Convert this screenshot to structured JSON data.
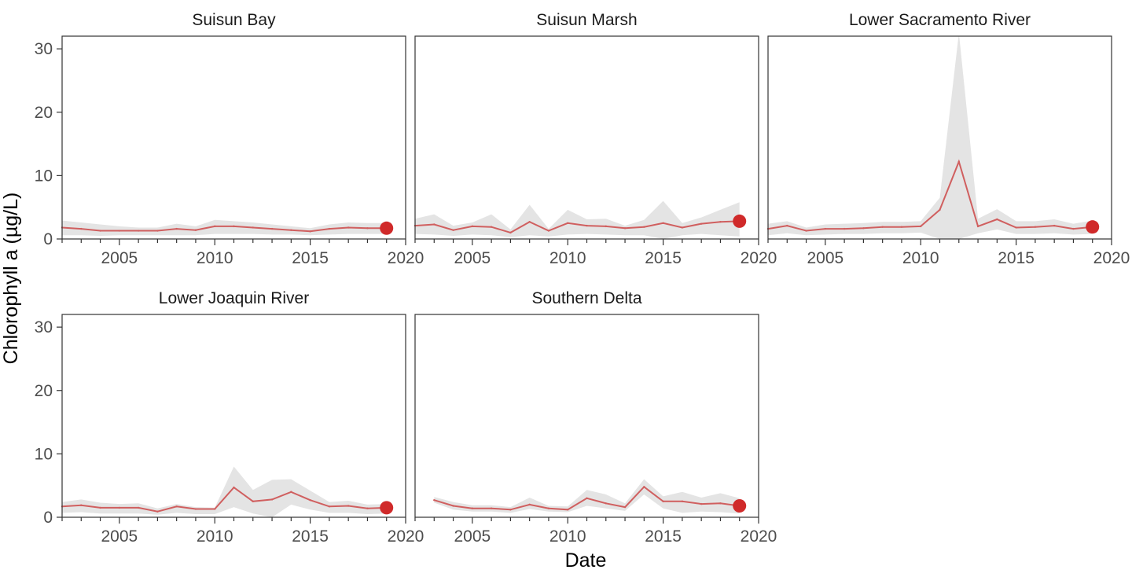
{
  "chart_data": {
    "type": "line",
    "layout": "facet-grid",
    "xlabel": "Date",
    "ylabel": "Chlorophyll a (µg/L)",
    "xlim": [
      2002,
      2020
    ],
    "ylim": [
      0,
      32
    ],
    "x_ticks": [
      2005,
      2010,
      2015,
      2020
    ],
    "y_ticks": [
      0,
      10,
      20,
      30
    ],
    "grid": false,
    "colors": {
      "line": "#d05f5f",
      "band": "#e4e4e4",
      "point": "#d02a2a",
      "axis": "#333333"
    },
    "panels": [
      {
        "title": "Suisun Bay",
        "x": [
          2002,
          2003,
          2004,
          2005,
          2006,
          2007,
          2008,
          2009,
          2010,
          2011,
          2012,
          2013,
          2014,
          2015,
          2016,
          2017,
          2018,
          2019
        ],
        "y": [
          1.8,
          1.6,
          1.3,
          1.3,
          1.3,
          1.3,
          1.6,
          1.4,
          2.0,
          2.0,
          1.8,
          1.6,
          1.4,
          1.2,
          1.6,
          1.8,
          1.7,
          1.7
        ],
        "lower": [
          0.6,
          0.6,
          0.5,
          0.6,
          0.6,
          0.6,
          0.6,
          0.6,
          0.8,
          0.8,
          0.8,
          0.7,
          0.7,
          0.6,
          0.7,
          0.8,
          0.8,
          0.8
        ],
        "upper": [
          2.9,
          2.6,
          2.3,
          2.0,
          1.8,
          1.8,
          2.4,
          2.0,
          3.0,
          2.8,
          2.6,
          2.3,
          2.0,
          1.7,
          2.3,
          2.6,
          2.5,
          2.5
        ],
        "highlight": {
          "x": 2019,
          "y": 1.7
        }
      },
      {
        "title": "Suisun Marsh",
        "x": [
          2002,
          2003,
          2004,
          2005,
          2006,
          2007,
          2008,
          2009,
          2010,
          2011,
          2012,
          2013,
          2014,
          2015,
          2016,
          2017,
          2018,
          2019
        ],
        "y": [
          2.1,
          2.3,
          1.4,
          2.0,
          1.9,
          1.0,
          2.7,
          1.3,
          2.5,
          2.1,
          2.0,
          1.7,
          1.9,
          2.5,
          1.8,
          2.4,
          2.7,
          2.8
        ],
        "lower": [
          0.8,
          0.7,
          0.5,
          0.7,
          0.6,
          0.3,
          0.6,
          0.4,
          0.7,
          0.8,
          0.7,
          0.6,
          0.6,
          0.0,
          0.6,
          0.8,
          0.6,
          0.4
        ],
        "upper": [
          3.2,
          3.9,
          2.1,
          2.6,
          3.9,
          1.5,
          5.4,
          1.6,
          4.6,
          3.1,
          3.2,
          2.1,
          3.0,
          6.0,
          2.5,
          3.4,
          4.6,
          5.8
        ],
        "highlight": {
          "x": 2019,
          "y": 2.8
        }
      },
      {
        "title": "Lower Sacramento River",
        "x": [
          2002,
          2003,
          2004,
          2005,
          2006,
          2007,
          2008,
          2009,
          2010,
          2011,
          2012,
          2013,
          2014,
          2015,
          2016,
          2017,
          2018,
          2019
        ],
        "y": [
          1.6,
          2.1,
          1.3,
          1.6,
          1.6,
          1.7,
          1.9,
          1.9,
          2.0,
          4.6,
          12.2,
          2.0,
          3.1,
          1.8,
          1.9,
          2.1,
          1.6,
          1.9
        ],
        "lower": [
          0.6,
          0.9,
          0.6,
          0.7,
          0.8,
          0.8,
          0.9,
          0.9,
          1.0,
          0.0,
          0.0,
          0.9,
          1.5,
          0.8,
          0.8,
          0.9,
          0.7,
          0.8
        ],
        "upper": [
          2.4,
          2.8,
          1.8,
          2.3,
          2.4,
          2.5,
          2.7,
          2.7,
          2.8,
          6.5,
          32.5,
          3.2,
          4.7,
          2.8,
          2.8,
          3.1,
          2.4,
          2.9
        ],
        "highlight": {
          "x": 2019,
          "y": 1.9
        }
      },
      {
        "title": "Lower Joaquin River",
        "x": [
          2002,
          2003,
          2004,
          2005,
          2006,
          2007,
          2008,
          2009,
          2010,
          2011,
          2012,
          2013,
          2014,
          2015,
          2016,
          2017,
          2018,
          2019
        ],
        "y": [
          1.7,
          1.9,
          1.5,
          1.5,
          1.5,
          0.9,
          1.7,
          1.3,
          1.3,
          4.7,
          2.5,
          2.8,
          4.0,
          2.7,
          1.7,
          1.8,
          1.4,
          1.5
        ],
        "lower": [
          0.7,
          0.8,
          0.6,
          0.6,
          0.6,
          0.4,
          0.7,
          0.5,
          0.5,
          1.6,
          0.6,
          0.0,
          2.0,
          1.2,
          0.7,
          0.7,
          0.5,
          0.6
        ],
        "upper": [
          2.4,
          2.8,
          2.3,
          2.1,
          2.2,
          1.4,
          2.1,
          1.6,
          1.5,
          8.0,
          4.3,
          5.9,
          6.0,
          4.2,
          2.4,
          2.6,
          2.0,
          2.1
        ],
        "highlight": {
          "x": 2019,
          "y": 1.5
        }
      },
      {
        "title": "Southern Delta",
        "x": [
          2003,
          2004,
          2005,
          2006,
          2007,
          2008,
          2009,
          2010,
          2011,
          2012,
          2013,
          2014,
          2015,
          2016,
          2017,
          2018,
          2019
        ],
        "y": [
          2.7,
          1.8,
          1.4,
          1.4,
          1.2,
          2.0,
          1.4,
          1.2,
          3.0,
          2.2,
          1.6,
          4.8,
          2.5,
          2.5,
          2.1,
          2.2,
          1.8
        ],
        "lower": [
          2.3,
          1.2,
          0.9,
          0.9,
          0.7,
          1.3,
          0.9,
          0.8,
          1.8,
          1.4,
          1.0,
          3.6,
          1.4,
          0.7,
          0.9,
          0.8,
          0.6
        ],
        "upper": [
          3.2,
          2.4,
          1.9,
          1.9,
          1.6,
          3.1,
          1.8,
          1.7,
          4.3,
          3.6,
          2.2,
          6.0,
          3.3,
          4.0,
          3.1,
          3.8,
          3.0
        ],
        "highlight": {
          "x": 2019,
          "y": 1.8
        }
      }
    ]
  }
}
